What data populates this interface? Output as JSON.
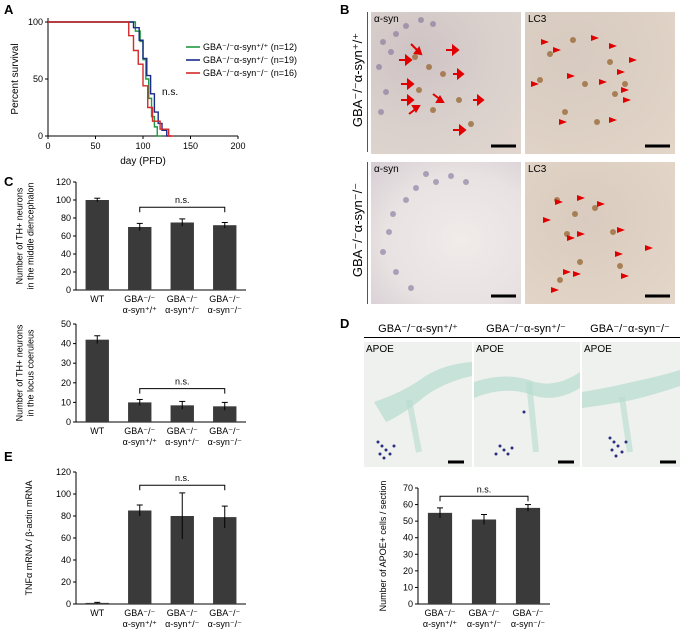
{
  "panels": {
    "A": {
      "letter": "A",
      "chart_data": {
        "type": "line",
        "xlabel": "day (PFD)",
        "ylabel": "Percent survival",
        "xlim": [
          0,
          200
        ],
        "ylim": [
          0,
          100
        ],
        "xticks": [
          "0",
          "50",
          "100",
          "150",
          "200"
        ],
        "yticks": [
          "0",
          "50",
          "100"
        ],
        "annotation": "n.s.",
        "series": [
          {
            "name": "GBA⁻/⁻α-syn⁺/⁺ (n=12)",
            "color": "#1f9a3e",
            "x": [
              0,
              92,
              92,
              97,
              97,
              100,
              100,
              103,
              103,
              106,
              106,
              109,
              109,
              112,
              112,
              115,
              115,
              120
            ],
            "y": [
              100,
              100,
              92,
              92,
              83,
              83,
              67,
              67,
              50,
              50,
              33,
              33,
              17,
              17,
              8,
              8,
              0,
              0
            ]
          },
          {
            "name": "GBA⁻/⁻α-syn⁺/⁻ (n=19)",
            "color": "#1a2a8a",
            "x": [
              0,
              90,
              90,
              96,
              96,
              100,
              100,
              104,
              104,
              108,
              108,
              112,
              112,
              116,
              116,
              120,
              120,
              125,
              125,
              130
            ],
            "y": [
              100,
              100,
              95,
              95,
              84,
              84,
              68,
              68,
              53,
              53,
              37,
              37,
              21,
              21,
              11,
              11,
              5,
              5,
              0,
              0
            ]
          },
          {
            "name": "GBA⁻/⁻α-syn⁻/⁻ (n=16)",
            "color": "#d42a2a",
            "x": [
              0,
              85,
              85,
              90,
              90,
              95,
              95,
              100,
              100,
              105,
              105,
              110,
              110,
              118,
              118,
              127,
              127,
              132
            ],
            "y": [
              100,
              100,
              88,
              88,
              75,
              75,
              63,
              63,
              44,
              44,
              25,
              25,
              13,
              13,
              6,
              6,
              0,
              0
            ]
          }
        ]
      }
    },
    "B": {
      "letter": "B",
      "row_labels": [
        "GBA⁻/⁻α-syn⁺/⁺",
        "GBA⁻/⁻α-syn⁻/⁻"
      ],
      "panel_labels": [
        "α-syn",
        "LC3",
        "α-syn",
        "LC3"
      ]
    },
    "C": {
      "letter": "C",
      "chart_data": [
        {
          "type": "bar",
          "ylabel_lines": [
            "Number of TH+ neurons",
            "in the middle diencephalon"
          ],
          "ylim": [
            0,
            120
          ],
          "yticks": [
            "0",
            "20",
            "40",
            "60",
            "80",
            "100",
            "120"
          ],
          "categories": [
            "WT",
            "GBA⁻/⁻|α-syn⁺/⁺",
            "GBA⁻/⁻|α-syn⁺/⁻",
            "GBA⁻/⁻|α-syn⁻/⁻"
          ],
          "values": [
            100,
            70,
            75,
            72
          ],
          "errors": [
            2,
            4,
            4,
            3
          ],
          "annotation": "n.s."
        },
        {
          "type": "bar",
          "ylabel_lines": [
            "Number of TH+ neurons",
            "in the locus coeruleus"
          ],
          "ylim": [
            0,
            50
          ],
          "yticks": [
            "0",
            "10",
            "20",
            "30",
            "40",
            "50"
          ],
          "categories": [
            "WT",
            "GBA⁻/⁻|α-syn⁺/⁺",
            "GBA⁻/⁻|α-syn⁺/⁻",
            "GBA⁻/⁻|α-syn⁻/⁻"
          ],
          "values": [
            42,
            10,
            8.5,
            8
          ],
          "errors": [
            2,
            1.5,
            2,
            2
          ],
          "annotation": "n.s."
        }
      ]
    },
    "D": {
      "letter": "D",
      "headers": [
        "GBA⁻/⁻α-syn⁺/⁺",
        "GBA⁻/⁻α-syn⁺/⁻",
        "GBA⁻/⁻α-syn⁻/⁻"
      ],
      "image_label": "APOE",
      "chart_data": {
        "type": "bar",
        "ylabel_lines": [
          "Number of APOE+ cells / section"
        ],
        "ylim": [
          0,
          70
        ],
        "yticks": [
          "0",
          "10",
          "20",
          "30",
          "40",
          "50",
          "60",
          "70"
        ],
        "categories": [
          "GBA⁻/⁻|α-syn⁺/⁺",
          "GBA⁻/⁻|α-syn⁺/⁻",
          "GBA⁻/⁻|α-syn⁻/⁻"
        ],
        "values": [
          55,
          51,
          58
        ],
        "errors": [
          3,
          3,
          2
        ],
        "annotation": "n.s."
      }
    },
    "E": {
      "letter": "E",
      "chart_data": {
        "type": "bar",
        "ylabel_lines": [
          "TNFα mRNA / β-actin mRNA"
        ],
        "ylim": [
          0,
          120
        ],
        "yticks": [
          "0",
          "20",
          "40",
          "60",
          "80",
          "100",
          "120"
        ],
        "categories": [
          "WT",
          "GBA⁻/⁻|α-syn⁺/⁺",
          "GBA⁻/⁻|α-syn⁺/⁻",
          "GBA⁻/⁻|α-syn⁻/⁻"
        ],
        "values": [
          1,
          85,
          80,
          79
        ],
        "errors": [
          0.5,
          5,
          21,
          10
        ],
        "annotation": "n.s."
      }
    }
  }
}
